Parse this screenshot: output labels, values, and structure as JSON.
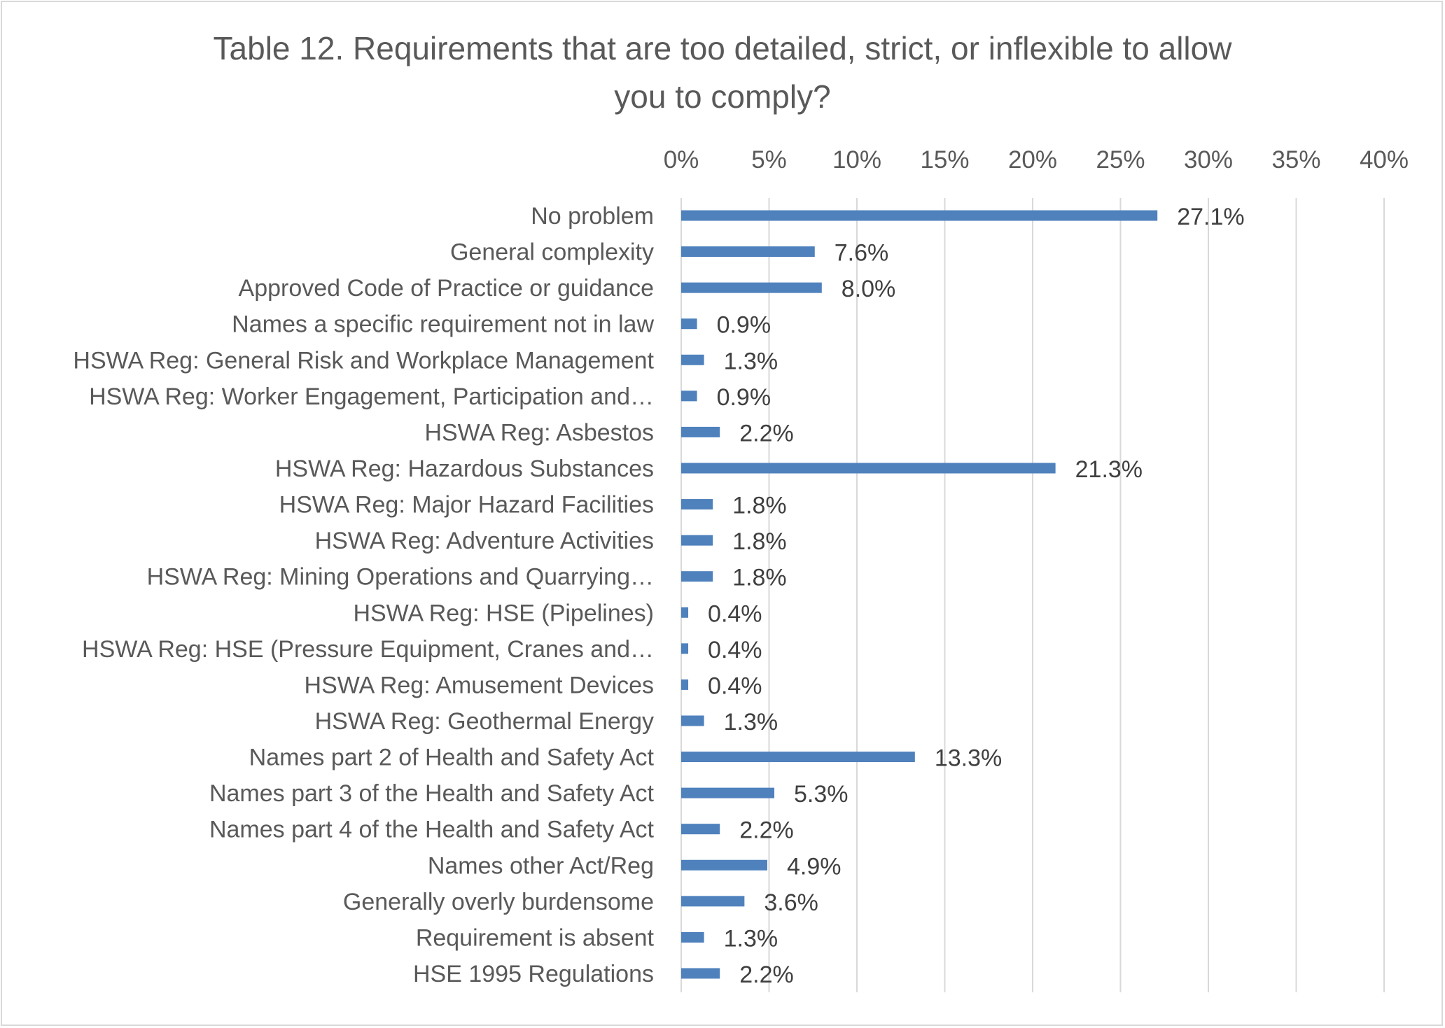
{
  "chart_data": {
    "type": "bar",
    "orientation": "horizontal",
    "title": "Table 12. Requirements that are too detailed, strict, or inflexible to allow you to comply?",
    "title_lines": [
      "Table 12. Requirements that are too detailed, strict, or inflexible to allow",
      "you to comply?"
    ],
    "xlabel": "",
    "ylabel": "",
    "xlim": [
      0,
      40
    ],
    "x_ticks": [
      0,
      5,
      10,
      15,
      20,
      25,
      30,
      35,
      40
    ],
    "x_tick_labels": [
      "0%",
      "5%",
      "10%",
      "15%",
      "20%",
      "25%",
      "30%",
      "35%",
      "40%"
    ],
    "x_axis_position": "top",
    "grid": true,
    "legend": "none",
    "bar_color": "#4f81bd",
    "gridline_color": "#d9d9d9",
    "categories": [
      "No problem",
      "General complexity",
      "Approved Code of Practice or guidance",
      "Names a specific requirement not in law",
      "HSWA Reg: General Risk and Workplace Management",
      "HSWA Reg: Worker Engagement, Participation and…",
      "HSWA Reg: Asbestos",
      "HSWA Reg: Hazardous Substances",
      "HSWA Reg: Major Hazard Facilities",
      "HSWA Reg: Adventure Activities",
      "HSWA Reg: Mining Operations and Quarrying…",
      "HSWA Reg: HSE (Pipelines)",
      "HSWA Reg: HSE (Pressure Equipment, Cranes and…",
      "HSWA Reg: Amusement Devices",
      "HSWA Reg: Geothermal Energy",
      "Names part 2 of Health and Safety Act",
      "Names part 3 of the Health and Safety Act",
      "Names part 4 of the Health and Safety Act",
      "Names other Act/Reg",
      "Generally overly burdensome",
      "Requirement is absent",
      "HSE 1995 Regulations"
    ],
    "values": [
      27.1,
      7.6,
      8.0,
      0.9,
      1.3,
      0.9,
      2.2,
      21.3,
      1.8,
      1.8,
      1.8,
      0.4,
      0.4,
      0.4,
      1.3,
      13.3,
      5.3,
      2.2,
      4.9,
      3.6,
      1.3,
      2.2
    ],
    "value_labels": [
      "27.1%",
      "7.6%",
      "8.0%",
      "0.9%",
      "1.3%",
      "0.9%",
      "2.2%",
      "21.3%",
      "1.8%",
      "1.8%",
      "1.8%",
      "0.4%",
      "0.4%",
      "0.4%",
      "1.3%",
      "13.3%",
      "5.3%",
      "2.2%",
      "4.9%",
      "3.6%",
      "1.3%",
      "2.2%"
    ]
  }
}
